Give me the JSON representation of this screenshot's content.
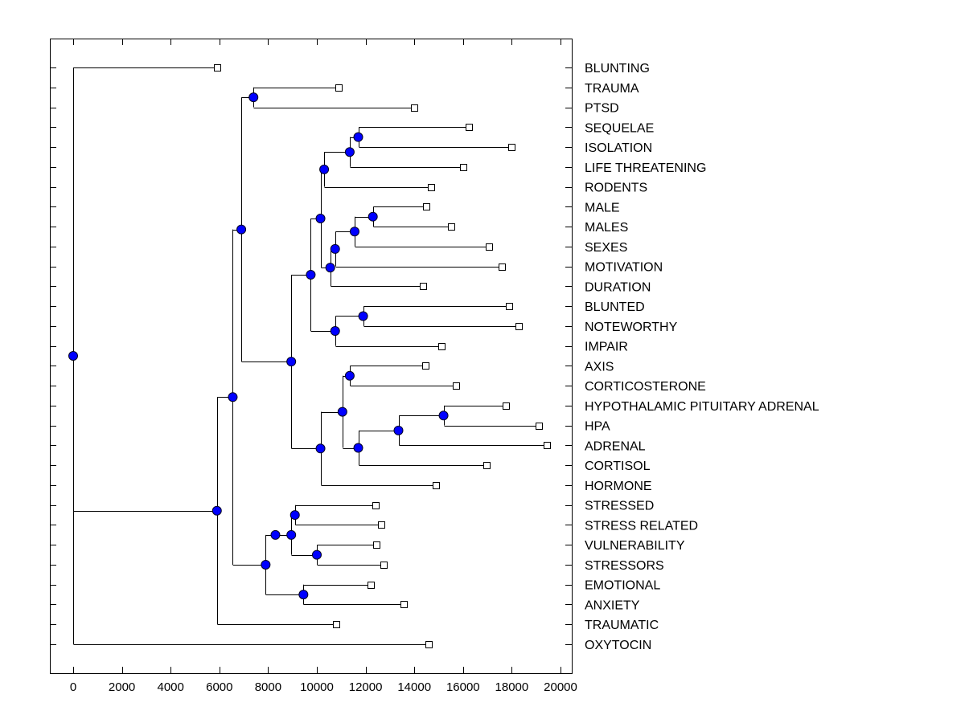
{
  "chart_data": {
    "type": "dendrogram",
    "title": "",
    "xlabel": "",
    "ylabel": "",
    "xlim": [
      -1000,
      20500
    ],
    "x_ticks": [
      0,
      2000,
      4000,
      6000,
      8000,
      10000,
      12000,
      14000,
      16000,
      18000,
      20000
    ],
    "x_tick_labels": [
      "0",
      "2000",
      "4000",
      "6000",
      "8000",
      "10000",
      "12000",
      "14000",
      "16000",
      "18000",
      "20000"
    ],
    "grid": false,
    "colors": {
      "node": "#0000ff",
      "leaf_fill": "#ffffff",
      "line": "#000000"
    },
    "leaves": [
      {
        "label": "BLUNTING",
        "x": 5900
      },
      {
        "label": "TRAUMA",
        "x": 10900
      },
      {
        "label": "PTSD",
        "x": 14000
      },
      {
        "label": "SEQUELAE",
        "x": 16250
      },
      {
        "label": "ISOLATION",
        "x": 18000
      },
      {
        "label": "LIFE THREATENING",
        "x": 16000
      },
      {
        "label": "RODENTS",
        "x": 14700
      },
      {
        "label": "MALE",
        "x": 14500
      },
      {
        "label": "MALES",
        "x": 15500
      },
      {
        "label": "SEXES",
        "x": 17050
      },
      {
        "label": "MOTIVATION",
        "x": 17600
      },
      {
        "label": "DURATION",
        "x": 14350
      },
      {
        "label": "BLUNTED",
        "x": 17900
      },
      {
        "label": "NOTEWORTHY",
        "x": 18300
      },
      {
        "label": "IMPAIR",
        "x": 15100
      },
      {
        "label": "AXIS",
        "x": 14450
      },
      {
        "label": "CORTICOSTERONE",
        "x": 15700
      },
      {
        "label": "HYPOTHALAMIC PITUITARY ADRENAL",
        "x": 17750
      },
      {
        "label": "HPA",
        "x": 19100
      },
      {
        "label": "ADRENAL",
        "x": 19450
      },
      {
        "label": "CORTISOL",
        "x": 16950
      },
      {
        "label": "HORMONE",
        "x": 14900
      },
      {
        "label": "STRESSED",
        "x": 12400
      },
      {
        "label": "STRESS RELATED",
        "x": 12650
      },
      {
        "label": "VULNERABILITY",
        "x": 12450
      },
      {
        "label": "STRESSORS",
        "x": 12750
      },
      {
        "label": "EMOTIONAL",
        "x": 12200
      },
      {
        "label": "ANXIETY",
        "x": 13550
      },
      {
        "label": "TRAUMATIC",
        "x": 10800
      },
      {
        "label": "OXYTOCIN",
        "x": 14600
      }
    ],
    "tree": {
      "x": 0,
      "children": [
        {
          "leaf": 0
        },
        {
          "x": 5900,
          "children": [
            {
              "x": 6550,
              "children": [
                {
                  "x": 6900,
                  "children": [
                    {
                      "x": 7400,
                      "children": [
                        {
                          "leaf": 1
                        },
                        {
                          "leaf": 2
                        }
                      ]
                    },
                    {
                      "x": 8950,
                      "children": [
                        {
                          "x": 9750,
                          "children": [
                            {
                              "x": 10150,
                              "children": [
                                {
                                  "x": 10300,
                                  "children": [
                                    {
                                      "x": 11350,
                                      "children": [
                                        {
                                          "x": 11700,
                                          "children": [
                                            {
                                              "leaf": 3
                                            },
                                            {
                                              "leaf": 4
                                            }
                                          ]
                                        },
                                        {
                                          "leaf": 5
                                        }
                                      ]
                                    },
                                    {
                                      "leaf": 6
                                    }
                                  ]
                                },
                                {
                                  "x": 10550,
                                  "children": [
                                    {
                                      "x": 10750,
                                      "children": [
                                        {
                                          "x": 11550,
                                          "children": [
                                            {
                                              "x": 12300,
                                              "children": [
                                                {
                                                  "leaf": 7
                                                },
                                                {
                                                  "leaf": 8
                                                }
                                              ]
                                            },
                                            {
                                              "leaf": 9
                                            }
                                          ]
                                        },
                                        {
                                          "leaf": 10
                                        }
                                      ]
                                    },
                                    {
                                      "leaf": 11
                                    }
                                  ]
                                }
                              ]
                            },
                            {
                              "x": 10750,
                              "children": [
                                {
                                  "x": 11900,
                                  "children": [
                                    {
                                      "leaf": 12
                                    },
                                    {
                                      "leaf": 13
                                    }
                                  ]
                                },
                                {
                                  "leaf": 14
                                }
                              ]
                            }
                          ]
                        },
                        {
                          "x": 10150,
                          "children": [
                            {
                              "x": 11050,
                              "children": [
                                {
                                  "x": 11350,
                                  "children": [
                                    {
                                      "leaf": 15
                                    },
                                    {
                                      "leaf": 16
                                    }
                                  ]
                                },
                                {
                                  "x": 11700,
                                  "children": [
                                    {
                                      "x": 13350,
                                      "children": [
                                        {
                                          "x": 15200,
                                          "children": [
                                            {
                                              "leaf": 17
                                            },
                                            {
                                              "leaf": 18
                                            }
                                          ]
                                        },
                                        {
                                          "leaf": 19
                                        }
                                      ]
                                    },
                                    {
                                      "leaf": 20
                                    }
                                  ]
                                }
                              ]
                            },
                            {
                              "leaf": 21
                            }
                          ]
                        }
                      ]
                    }
                  ]
                },
                {
                  "x": 7900,
                  "children": [
                    {
                      "x": 8300,
                      "children": [
                        {
                          "x": 8950,
                          "children": [
                            {
                              "x": 9100,
                              "children": [
                                {
                                  "leaf": 22
                                },
                                {
                                  "leaf": 23
                                }
                              ]
                            },
                            {
                              "x": 10000,
                              "children": [
                                {
                                  "leaf": 24
                                },
                                {
                                  "leaf": 25
                                }
                              ]
                            }
                          ]
                        }
                      ]
                    },
                    {
                      "x": 9450,
                      "children": [
                        {
                          "leaf": 26
                        },
                        {
                          "leaf": 27
                        }
                      ]
                    }
                  ]
                }
              ]
            },
            {
              "leaf": 28
            }
          ]
        },
        {
          "leaf": 29
        }
      ]
    }
  }
}
